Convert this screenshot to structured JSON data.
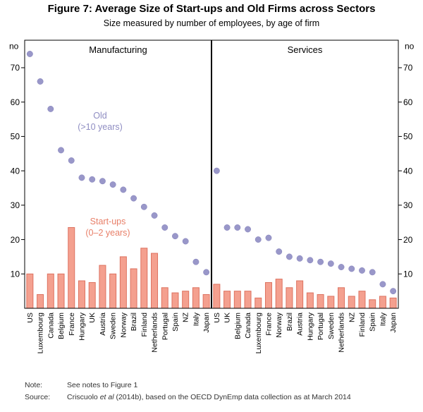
{
  "figure": {
    "title": "Figure 7: Average Size of Start-ups and Old Firms across Sectors",
    "subtitle": "Size measured by number of employees, by age of firm"
  },
  "notes": {
    "note_label": "Note:",
    "note_text": "See notes to Figure 1",
    "source_label": "Source:",
    "source_prefix": "Criscuolo ",
    "source_italic": "et al",
    "source_suffix": " (2014b), based on the OECD DynEmp data collection as at March 2014"
  },
  "style": {
    "dot_fill": "#9997C9",
    "dot_edge": "#8583BB",
    "bar_fill": "#F4A08F",
    "bar_edge": "#DD7260",
    "old_label_color": "#8F8DC2",
    "startup_label_color": "#E87F68",
    "axis_color": "#000000"
  },
  "chart_data": {
    "type": "bar",
    "description": "Dots (scatter) show average size of old firms; bars show average size of start-ups, by sector panel",
    "unit_label": "no",
    "ylabel": "number of employees",
    "ylim": [
      0,
      78
    ],
    "yticks": [
      10,
      20,
      30,
      40,
      50,
      60,
      70
    ],
    "grid": false,
    "legend": [
      {
        "name": "Old (>10 years)",
        "lines": [
          "Old",
          "(>10 years)"
        ],
        "marker": "dot"
      },
      {
        "name": "Start-ups (0–2 years)",
        "lines": [
          "Start-ups",
          "(0–2 years)"
        ],
        "marker": "bar"
      }
    ],
    "panels": [
      {
        "label": "Manufacturing",
        "categories": [
          "US",
          "Luxembourg",
          "Canada",
          "Belgium",
          "France",
          "Hungary",
          "UK",
          "Austria",
          "Sweden",
          "Norway",
          "Brazil",
          "Finland",
          "Netherlands",
          "Portugal",
          "Spain",
          "NZ",
          "Italy",
          "Japan"
        ],
        "series": [
          {
            "name": "Old (>10 years)",
            "type": "scatter",
            "values": [
              74,
              66,
              58,
              46,
              43,
              38,
              37.5,
              37,
              36,
              34.5,
              32,
              29.5,
              27,
              23.5,
              21,
              19.5,
              13.5,
              10.5
            ]
          },
          {
            "name": "Start-ups (0–2 years)",
            "type": "bar",
            "values": [
              10,
              4,
              10,
              10,
              23.5,
              8,
              7.5,
              12.5,
              10,
              15,
              11.5,
              17.5,
              16,
              6,
              4.5,
              5,
              6,
              4
            ]
          }
        ]
      },
      {
        "label": "Services",
        "categories": [
          "US",
          "UK",
          "Belgium",
          "Canada",
          "Luxembourg",
          "France",
          "Norway",
          "Brazil",
          "Austria",
          "Hungary",
          "Portugal",
          "Sweden",
          "Netherlands",
          "NZ",
          "Finland",
          "Spain",
          "Italy",
          "Japan"
        ],
        "series": [
          {
            "name": "Old (>10 years)",
            "type": "scatter",
            "values": [
              40,
              23.5,
              23.5,
              23,
              20,
              20.5,
              16.5,
              15,
              14.5,
              14,
              13.5,
              13,
              12,
              11.5,
              11,
              10.5,
              7,
              5
            ]
          },
          {
            "name": "Start-ups (0–2 years)",
            "type": "bar",
            "values": [
              7,
              5,
              5,
              5,
              3,
              7.5,
              8.5,
              6,
              8,
              4.5,
              4,
              3.5,
              6,
              3.5,
              5,
              2.5,
              3.5,
              3
            ]
          }
        ]
      }
    ]
  }
}
